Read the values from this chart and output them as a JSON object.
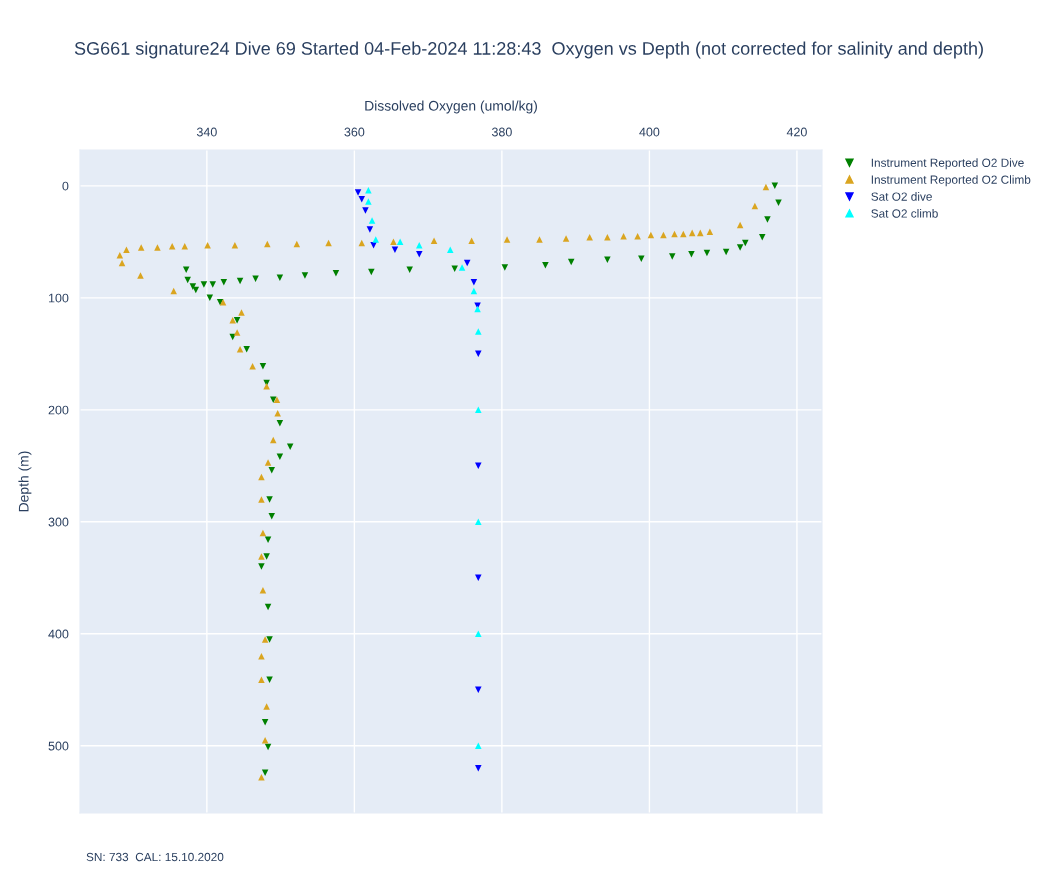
{
  "chart_data": {
    "type": "scatter",
    "title": "SG661 signature24 Dive 69 Started 04-Feb-2024 11:28:43  Oxygen vs Depth (not corrected for salinity and depth)",
    "xlabel": "Dissolved Oxygen (umol/kg)",
    "ylabel": "Depth (m)",
    "annotations": [
      "SN: 733  CAL: 15.10.2020"
    ],
    "xlim": [
      322.8,
      423.4
    ],
    "xticks": [
      340,
      360,
      380,
      400,
      420
    ],
    "ylim": [
      560,
      -32
    ],
    "yticks": [
      0,
      100,
      200,
      300,
      400,
      500
    ],
    "grid": true,
    "legend": "top right",
    "series": [
      {
        "name": "Instrument Reported O2 Dive",
        "color": "#008000",
        "marker": "triangle-down",
        "x": [
          417,
          417.5,
          416,
          415.3,
          413,
          412.3,
          410.4,
          407.8,
          405.7,
          403.1,
          398.9,
          394.3,
          389.4,
          385.9,
          380.4,
          373.6,
          367.5,
          362.3,
          357.5,
          353.3,
          349.9,
          346.6,
          344.5,
          342.3,
          340.8,
          339.6,
          338.1,
          337.2,
          337.4,
          338.5,
          340.4,
          341.8,
          344.1,
          343.5,
          345.4,
          347.6,
          348.1,
          349.0,
          349.9,
          351.3,
          349.9,
          348.8,
          348.5,
          348.8,
          348.3,
          348.1,
          347.4,
          348.3,
          348.5,
          348.5,
          347.9,
          348.3,
          347.9
        ],
        "values": [
          0,
          15,
          30,
          46,
          51,
          55,
          59,
          60,
          61,
          63,
          65,
          66,
          68,
          71,
          73,
          74,
          75,
          77,
          78,
          80,
          82,
          83,
          85,
          86,
          88,
          88,
          90,
          75,
          84,
          93,
          100,
          104,
          120,
          135,
          146,
          161,
          176,
          191,
          212,
          233,
          242,
          254,
          280,
          295,
          316,
          331,
          340,
          376,
          405,
          441,
          479,
          501,
          524
        ]
      },
      {
        "name": "Instrument Reported O2 Climb",
        "color": "#daa520",
        "marker": "triangle",
        "x": [
          347.4,
          347.9,
          348.1,
          347.4,
          347.4,
          347.9,
          347.6,
          347.4,
          347.6,
          347.4,
          347.4,
          348.3,
          349.0,
          349.6,
          349.5,
          348.1,
          346.2,
          344.5,
          344.1,
          343.5,
          344.7,
          342.2,
          335.5,
          331.0,
          328.5,
          328.2,
          329.1,
          331.1,
          333.3,
          335.3,
          337.0,
          340.1,
          343.8,
          348.2,
          352.2,
          356.5,
          361.0,
          365.3,
          370.8,
          375.9,
          380.7,
          385.1,
          388.7,
          391.9,
          394.3,
          396.5,
          398.4,
          400.2,
          401.9,
          403.4,
          404.6,
          405.8,
          406.9,
          408.2,
          412.3,
          414.3,
          415.8
        ],
        "values": [
          528,
          495,
          465,
          441,
          420,
          405,
          361,
          331,
          310,
          280,
          260,
          247,
          227,
          203,
          191,
          179,
          161,
          146,
          131,
          120,
          113,
          104,
          94,
          80,
          69,
          62,
          57,
          55,
          55,
          54,
          54,
          53,
          53,
          52,
          52,
          51,
          51,
          50,
          49,
          49,
          48,
          48,
          47,
          46,
          46,
          45,
          45,
          44,
          44,
          43,
          43,
          42,
          42,
          41,
          35,
          18,
          1
        ]
      },
      {
        "name": "Sat O2 dive",
        "color": "#0000ff",
        "marker": "triangle-down",
        "x": [
          360.5,
          361.0,
          361.5,
          362.1,
          362.6,
          365.5,
          368.8,
          375.3,
          376.2,
          376.7,
          376.8,
          376.8,
          376.8,
          376.8,
          376.8
        ],
        "values": [
          6,
          12,
          22,
          39,
          53,
          57,
          61,
          69,
          86,
          107,
          150,
          250,
          350,
          450,
          520
        ]
      },
      {
        "name": "Sat O2 climb",
        "color": "#00ffff",
        "marker": "triangle",
        "x": [
          376.8,
          376.8,
          376.8,
          376.8,
          376.8,
          376.7,
          376.2,
          374.6,
          373.0,
          368.8,
          366.2,
          362.9,
          362.4,
          361.9,
          361.9
        ],
        "values": [
          500,
          400,
          300,
          200,
          130,
          110,
          94,
          73,
          57,
          53,
          50,
          48,
          31,
          14,
          4
        ]
      }
    ]
  }
}
